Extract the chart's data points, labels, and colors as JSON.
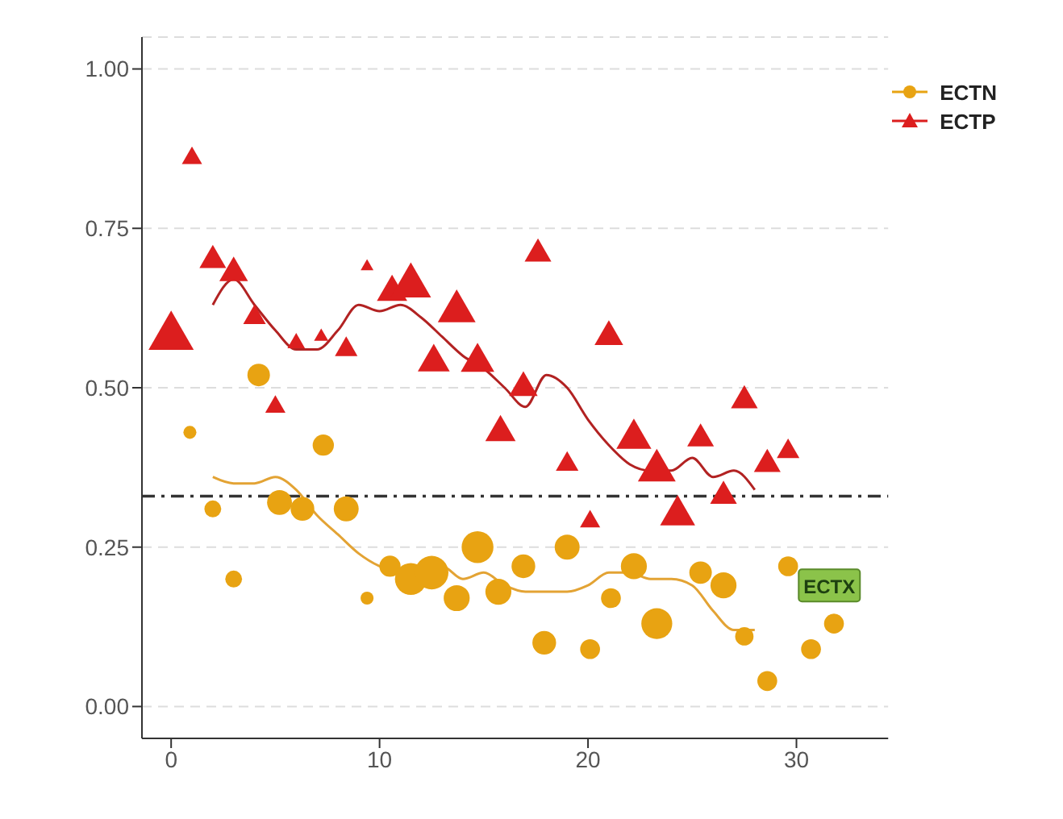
{
  "chart_data": {
    "type": "bubble",
    "xlim": [
      -1.4,
      34.4
    ],
    "xticks": [
      0,
      10,
      20,
      30
    ],
    "ylim": [
      -0.05,
      1.05
    ],
    "yticks": [
      {
        "value": 0,
        "label": "0.00"
      },
      {
        "value": 0.25,
        "label": "0.25"
      },
      {
        "value": 0.5,
        "label": "0.50"
      },
      {
        "value": 0.75,
        "label": "0.75"
      },
      {
        "value": 1,
        "label": "1.00"
      }
    ],
    "grid": "y",
    "legend": "top right",
    "ref_lines": [
      {
        "axis": "y",
        "value": 0.33,
        "color": "#333333",
        "line_style": "dashdot"
      }
    ],
    "annotations": [
      {
        "text": "ECTX",
        "x": 31.5,
        "y": 0.19
      }
    ],
    "series": [
      {
        "name": "ECTN",
        "type": "bubble",
        "marker": "circle",
        "color": "#e8a312",
        "x": [
          0.9,
          2,
          3,
          4.2,
          5.2,
          6.3,
          7.3,
          8.4,
          9.4,
          10.5,
          11.5,
          12.5,
          13.7,
          14.7,
          15.7,
          16.9,
          17.9,
          19,
          20.1,
          21.1,
          22.2,
          23.3,
          25.4,
          26.5,
          27.5,
          28.6,
          29.6,
          30.7,
          31.8
        ],
        "values": [
          0.43,
          0.31,
          0.2,
          0.52,
          0.32,
          0.31,
          0.41,
          0.31,
          0.17,
          0.22,
          0.2,
          0.21,
          0.17,
          0.25,
          0.18,
          0.22,
          0.1,
          0.25,
          0.09,
          0.17,
          0.22,
          0.13,
          0.21,
          0.19,
          0.11,
          0.04,
          0.22,
          0.09,
          0.13
        ],
        "sizes": [
          0.15,
          0.25,
          0.25,
          0.45,
          0.55,
          0.5,
          0.4,
          0.55,
          0.15,
          0.4,
          0.9,
          1,
          0.6,
          0.9,
          0.6,
          0.5,
          0.5,
          0.55,
          0.35,
          0.35,
          0.6,
          0.85,
          0.45,
          0.6,
          0.3,
          0.35,
          0.35,
          0.35,
          0.35
        ]
      },
      {
        "name": "ECTP",
        "type": "bubble",
        "marker": "triangle",
        "color": "#dc1e1e",
        "x": [
          0,
          1,
          2,
          3,
          4,
          5,
          6,
          7.2,
          8.4,
          9.4,
          10.6,
          11.5,
          12.6,
          13.7,
          14.7,
          15.8,
          16.9,
          17.6,
          19,
          20.1,
          21,
          22.2,
          23.3,
          24.3,
          25.4,
          26.5,
          27.5,
          28.6,
          29.6
        ],
        "values": [
          0.58,
          0.86,
          0.7,
          0.68,
          0.61,
          0.47,
          0.57,
          0.58,
          0.56,
          0.69,
          0.65,
          0.66,
          0.54,
          0.62,
          0.54,
          0.43,
          0.5,
          0.71,
          0.38,
          0.29,
          0.58,
          0.42,
          0.37,
          0.3,
          0.42,
          0.33,
          0.48,
          0.38,
          0.4
        ],
        "sizes": [
          1,
          0.2,
          0.35,
          0.4,
          0.25,
          0.2,
          0.15,
          0.1,
          0.25,
          0.08,
          0.45,
          0.8,
          0.5,
          0.7,
          0.55,
          0.45,
          0.4,
          0.35,
          0.25,
          0.2,
          0.4,
          0.6,
          0.7,
          0.6,
          0.35,
          0.35,
          0.35,
          0.35,
          0.25
        ]
      },
      {
        "type": "line",
        "color": "#e3a334",
        "x": [
          2,
          3,
          4,
          5,
          6,
          7,
          8,
          9,
          10,
          11,
          12,
          13,
          14,
          15,
          16,
          17,
          18,
          19,
          20,
          21,
          22,
          23,
          24,
          25,
          26,
          27,
          28
        ],
        "values": [
          0.36,
          0.35,
          0.35,
          0.36,
          0.34,
          0.3,
          0.27,
          0.24,
          0.22,
          0.21,
          0.22,
          0.22,
          0.2,
          0.21,
          0.19,
          0.18,
          0.18,
          0.18,
          0.19,
          0.21,
          0.21,
          0.2,
          0.2,
          0.19,
          0.15,
          0.12,
          0.12
        ]
      },
      {
        "type": "line",
        "color": "#b22222",
        "x": [
          2,
          3,
          4,
          5,
          6,
          7,
          8,
          9,
          10,
          11,
          12,
          13,
          14,
          15,
          16,
          17,
          18,
          19,
          20,
          21,
          22,
          23,
          24,
          25,
          26,
          27,
          28
        ],
        "values": [
          0.63,
          0.67,
          0.63,
          0.59,
          0.56,
          0.56,
          0.59,
          0.63,
          0.62,
          0.63,
          0.61,
          0.58,
          0.55,
          0.53,
          0.5,
          0.47,
          0.52,
          0.5,
          0.45,
          0.41,
          0.38,
          0.37,
          0.37,
          0.39,
          0.36,
          0.37,
          0.34
        ]
      }
    ]
  }
}
